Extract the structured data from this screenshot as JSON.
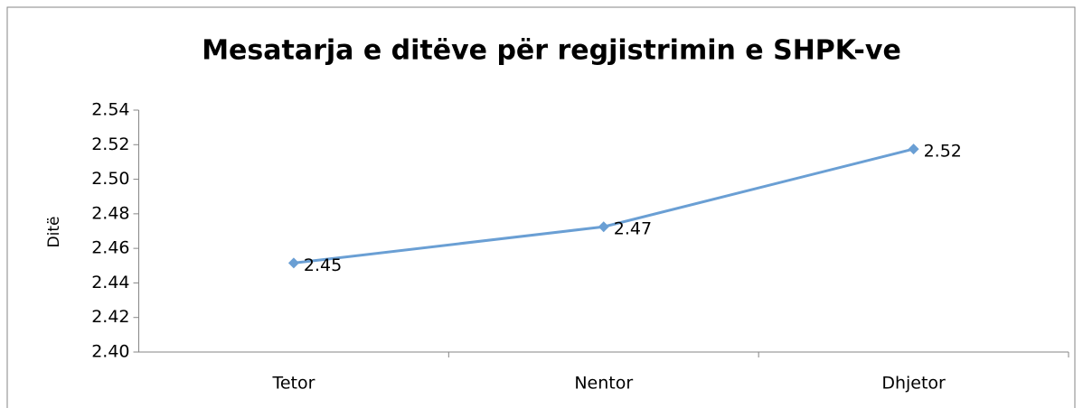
{
  "chart_data": {
    "type": "line",
    "title": "Mesatarja e ditëve për regjistrimin e SHPK-ve",
    "y_label": "Ditë",
    "categories": [
      "Tetor",
      "Nentor",
      "Dhjetor"
    ],
    "series": [
      {
        "name": "Ditë",
        "color": "#6a9fd4",
        "values": [
          2.4515,
          2.4725,
          2.5175
        ],
        "value_labels": [
          "2.45",
          "2.47",
          "2.52"
        ]
      }
    ],
    "ylim": [
      2.4,
      2.54
    ],
    "yticks": [
      {
        "value": 2.4,
        "label": "2.40"
      },
      2.42,
      2.44,
      2.46,
      2.48,
      {
        "value": 2.5,
        "label": "2.50"
      },
      2.52,
      2.54
    ],
    "grid": false,
    "legend": false
  }
}
